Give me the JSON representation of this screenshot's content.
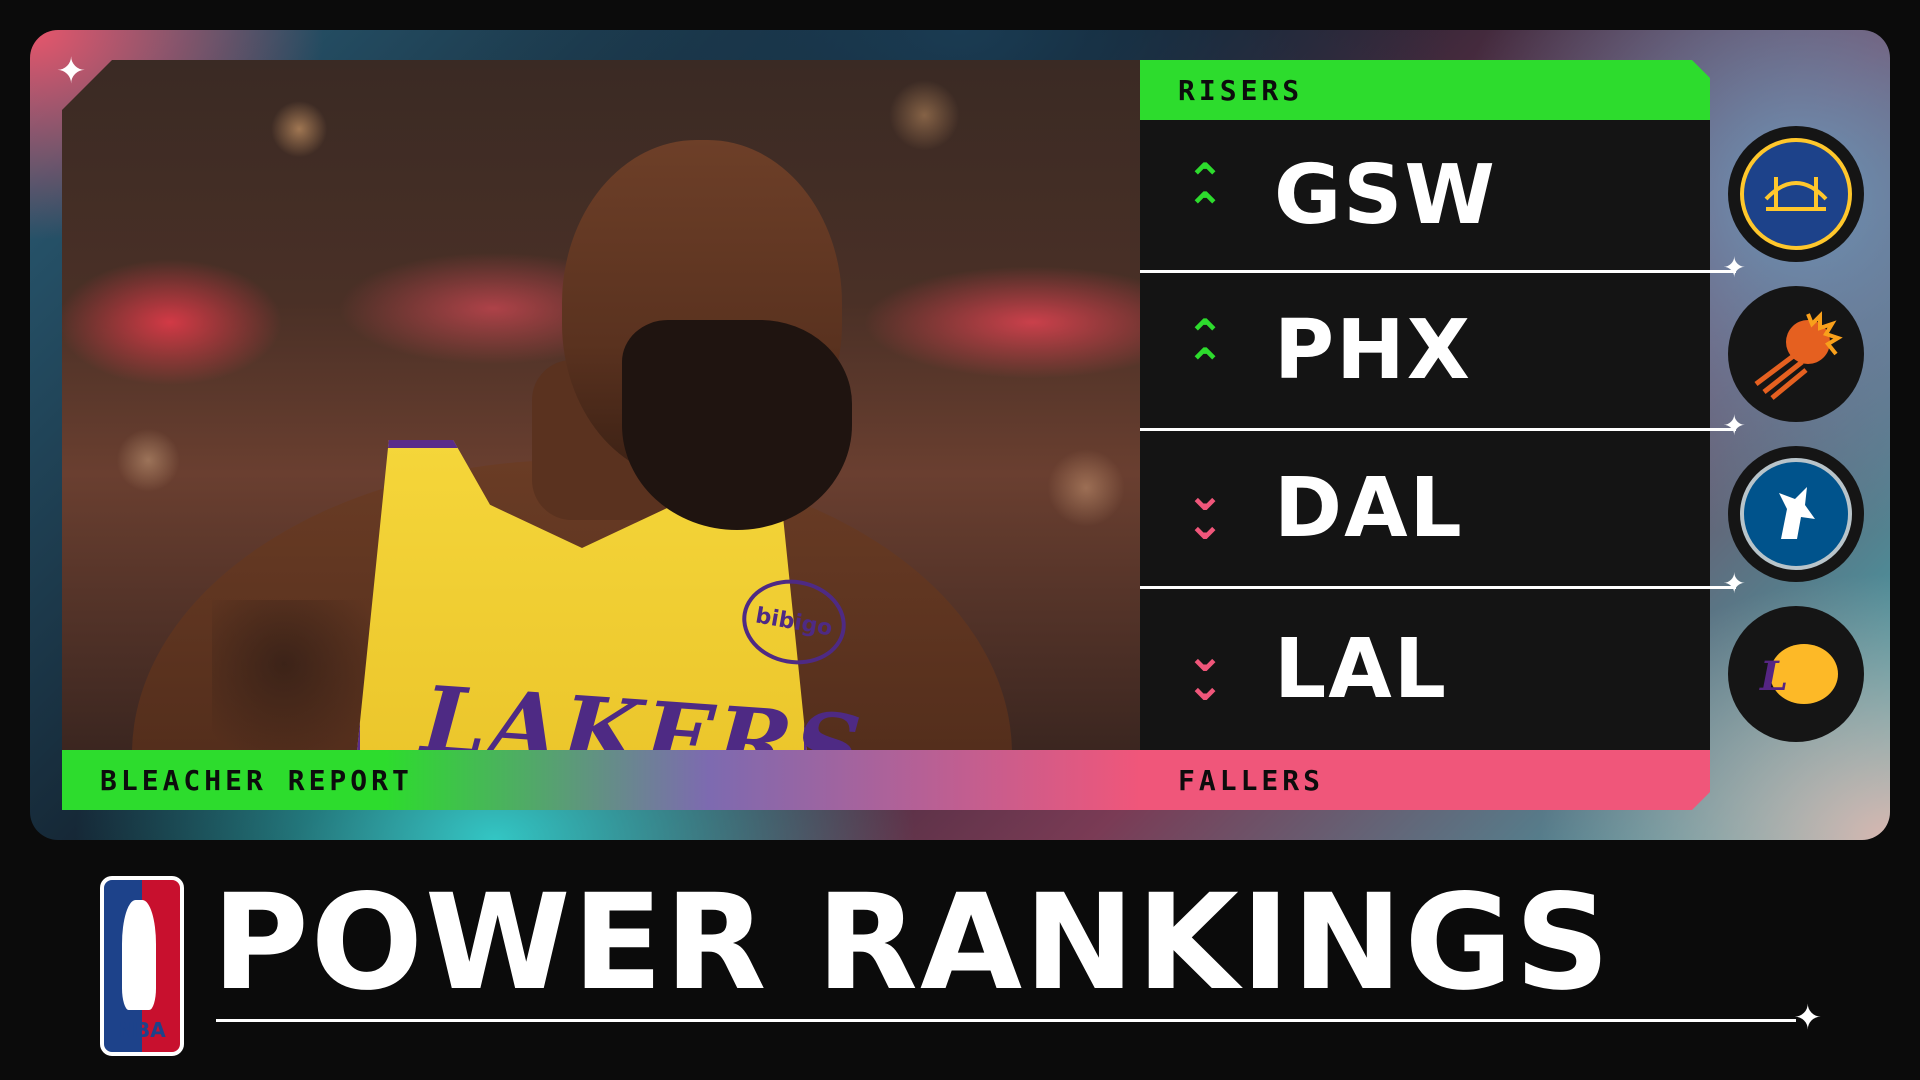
{
  "brand": {
    "label": "BLEACHER REPORT",
    "league_logo_text": "NBA"
  },
  "title": "POWER RANKINGS",
  "photo": {
    "jersey_text": "LAKERS",
    "sponsor": "bibigo"
  },
  "panel": {
    "risers_label": "RISERS",
    "fallers_label": "FALLERS",
    "teams": [
      {
        "code": "GSW",
        "trend": "up",
        "logo_icon": "warriors-logo-icon",
        "logo_color": "#1d428a"
      },
      {
        "code": "PHX",
        "trend": "up",
        "logo_icon": "suns-logo-icon",
        "logo_color": "#e56020"
      },
      {
        "code": "DAL",
        "trend": "down",
        "logo_icon": "mavericks-logo-icon",
        "logo_color": "#00538c"
      },
      {
        "code": "LAL",
        "trend": "down",
        "logo_icon": "lakers-logo-icon",
        "logo_color": "#552583"
      }
    ]
  },
  "colors": {
    "riser": "#2ddc2d",
    "faller": "#f0567a"
  }
}
